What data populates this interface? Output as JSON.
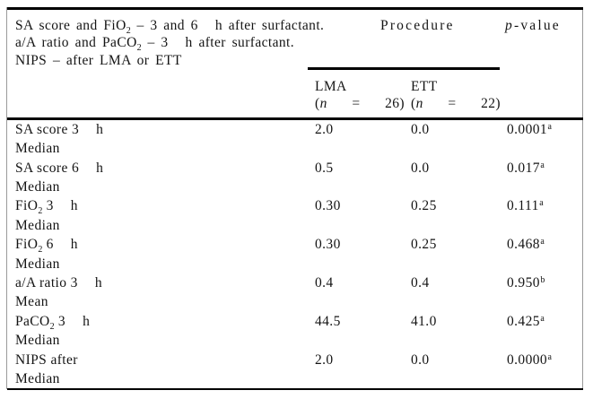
{
  "table": {
    "caption_lines": [
      [
        {
          "t": "SA score and FiO"
        },
        {
          "t": "2",
          "sub": true
        },
        {
          "t": " – 3 and 6"
        },
        {
          "t": "h",
          "gap": true
        },
        {
          "t": " after surfactant."
        }
      ],
      [
        {
          "t": "a/A ratio and PaCO"
        },
        {
          "t": "2",
          "sub": true
        },
        {
          "t": " – 3"
        },
        {
          "t": "h",
          "gap": true
        },
        {
          "t": " after surfactant."
        }
      ],
      [
        {
          "t": "NIPS – after LMA or ETT"
        }
      ]
    ],
    "procedure_header": "Procedure",
    "pvalue_header": [
      {
        "t": "p",
        "italic": true
      },
      {
        "t": "-value"
      }
    ],
    "groups": [
      {
        "name": "LMA",
        "n_line": [
          [
            {
              "t": "("
            },
            {
              "t": "n",
              "italic": true
            }
          ],
          [
            {
              "t": "="
            }
          ],
          [
            {
              "t": "26)"
            }
          ]
        ]
      },
      {
        "name": "ETT",
        "n_line": [
          [
            {
              "t": "("
            },
            {
              "t": "n",
              "italic": true
            }
          ],
          [
            {
              "t": "="
            }
          ],
          [
            {
              "t": "22)"
            }
          ]
        ]
      }
    ],
    "rows": [
      {
        "label": [
          {
            "t": "SA score 3"
          },
          {
            "t": "h",
            "gap": true
          }
        ],
        "stat": "Median",
        "lma": "2.0",
        "ett": "0.0",
        "p": [
          {
            "t": "0.0001"
          },
          {
            "t": "a",
            "sup": true
          }
        ]
      },
      {
        "label": [
          {
            "t": "SA score 6"
          },
          {
            "t": "h",
            "gap": true
          }
        ],
        "stat": "Median",
        "lma": "0.5",
        "ett": "0.0",
        "p": [
          {
            "t": "0.017"
          },
          {
            "t": "a",
            "sup": true
          }
        ]
      },
      {
        "label": [
          {
            "t": "FiO"
          },
          {
            "t": "2",
            "sub": true
          },
          {
            "t": " 3"
          },
          {
            "t": "h",
            "gap": true
          }
        ],
        "stat": "Median",
        "lma": "0.30",
        "ett": "0.25",
        "p": [
          {
            "t": "0.111"
          },
          {
            "t": "a",
            "sup": true
          }
        ]
      },
      {
        "label": [
          {
            "t": "FiO"
          },
          {
            "t": "2",
            "sub": true
          },
          {
            "t": " 6"
          },
          {
            "t": "h",
            "gap": true
          }
        ],
        "stat": "Median",
        "lma": "0.30",
        "ett": "0.25",
        "p": [
          {
            "t": "0.468"
          },
          {
            "t": "a",
            "sup": true
          }
        ]
      },
      {
        "label": [
          {
            "t": "a/A ratio 3"
          },
          {
            "t": "h",
            "gap": true
          }
        ],
        "stat": "Mean",
        "lma": "0.4",
        "ett": "0.4",
        "p": [
          {
            "t": "0.950"
          },
          {
            "t": "b",
            "sup": true
          }
        ]
      },
      {
        "label": [
          {
            "t": "PaCO"
          },
          {
            "t": "2",
            "sub": true
          },
          {
            "t": " 3"
          },
          {
            "t": "h",
            "gap": true
          }
        ],
        "stat": "Median",
        "lma": "44.5",
        "ett": "41.0",
        "p": [
          {
            "t": "0.425"
          },
          {
            "t": "a",
            "sup": true
          }
        ]
      },
      {
        "label": [
          {
            "t": "NIPS after"
          }
        ],
        "stat": "Median",
        "lma": "2.0",
        "ett": "0.0",
        "p": [
          {
            "t": "0.0000"
          },
          {
            "t": "a",
            "sup": true
          }
        ]
      }
    ],
    "colors": {
      "text": "#141414",
      "rule": "#000000",
      "frame": "#9a9a9a",
      "background": "#ffffff"
    }
  }
}
